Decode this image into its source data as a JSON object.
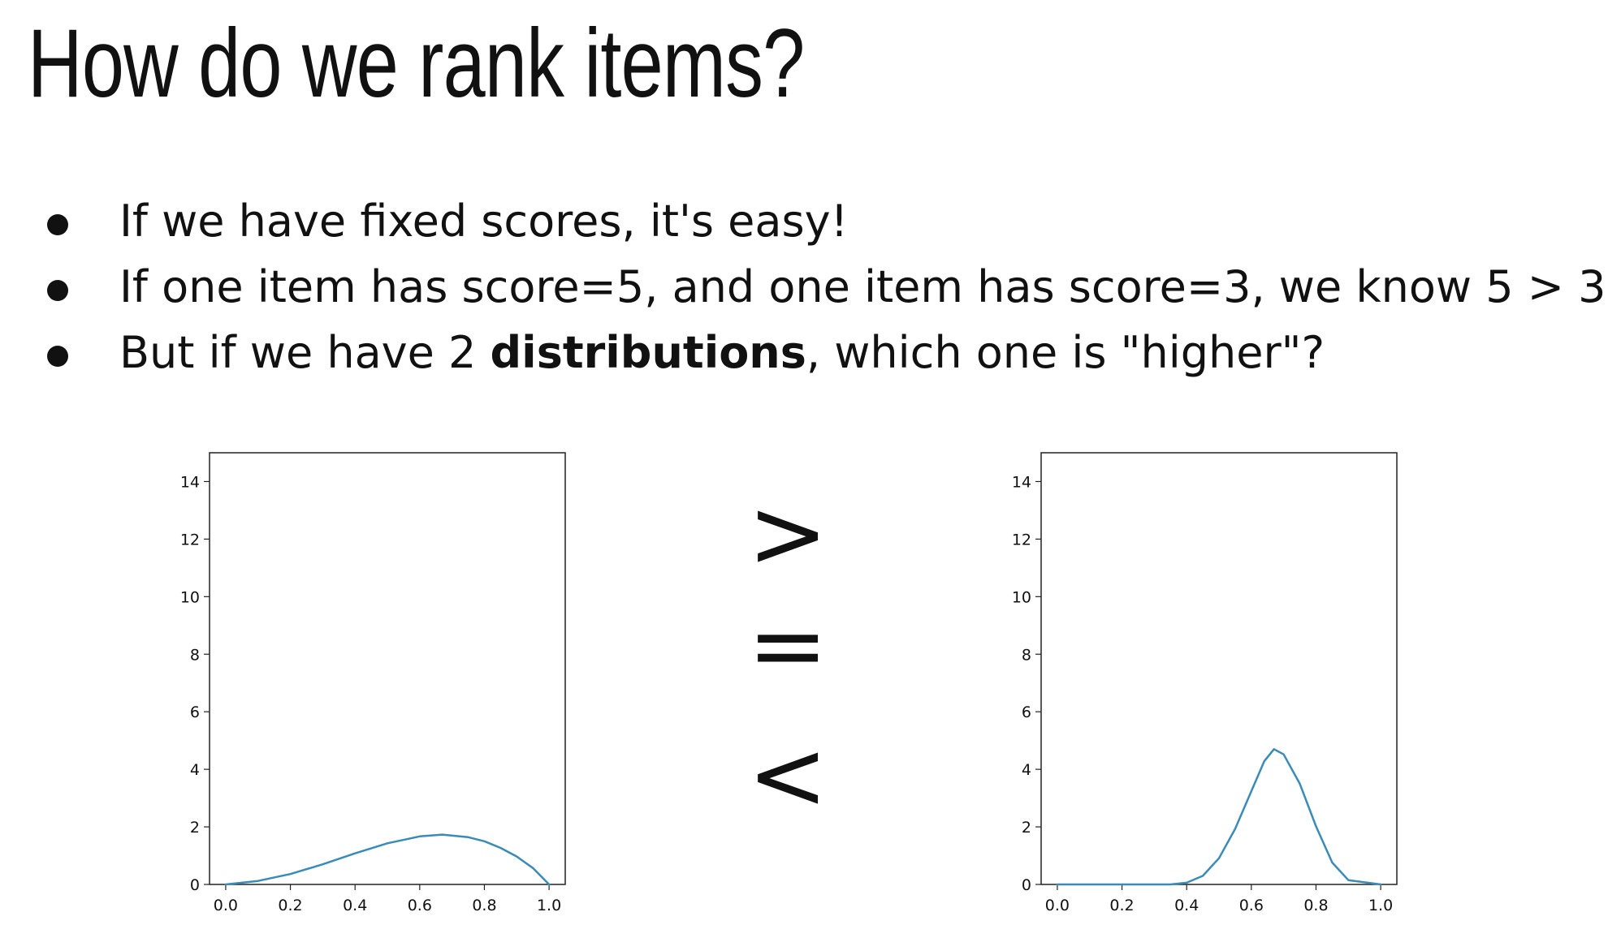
{
  "slide": {
    "title": "How do we rank items?",
    "bullets": [
      {
        "pre": "If we have fixed scores, it's easy!",
        "bold": "",
        "post": ""
      },
      {
        "pre": "If one item has score=5, and one item has score=3, we know 5 > 3",
        "bold": "",
        "post": ""
      },
      {
        "pre": "But if we have 2 ",
        "bold": "distributions",
        "post": ", which one is \"higher\"?"
      }
    ],
    "relations": [
      ">",
      "=",
      "<"
    ]
  },
  "colors": {
    "line": "#3a8bb7",
    "axis": "#222222",
    "text": "#111111"
  },
  "chart_data": [
    {
      "type": "line",
      "title": "",
      "xlabel": "",
      "ylabel": "",
      "xlim": [
        -0.05,
        1.05
      ],
      "ylim": [
        0,
        15
      ],
      "xticks": [
        "0.0",
        "0.2",
        "0.4",
        "0.6",
        "0.8",
        "1.0"
      ],
      "yticks": [
        "0",
        "2",
        "4",
        "6",
        "8",
        "10",
        "12",
        "14"
      ],
      "grid": false,
      "series": [
        {
          "x": [
            0.0,
            0.1,
            0.2,
            0.3,
            0.4,
            0.5,
            0.6,
            0.67,
            0.75,
            0.8,
            0.85,
            0.9,
            0.95,
            1.0
          ],
          "y": [
            0.0,
            0.12,
            0.36,
            0.7,
            1.08,
            1.43,
            1.67,
            1.73,
            1.64,
            1.5,
            1.27,
            0.97,
            0.57,
            0.0
          ]
        }
      ]
    },
    {
      "type": "line",
      "title": "",
      "xlabel": "",
      "ylabel": "",
      "xlim": [
        -0.05,
        1.05
      ],
      "ylim": [
        0,
        15
      ],
      "xticks": [
        "0.0",
        "0.2",
        "0.4",
        "0.6",
        "0.8",
        "1.0"
      ],
      "yticks": [
        "0",
        "2",
        "4",
        "6",
        "8",
        "10",
        "12",
        "14"
      ],
      "grid": false,
      "series": [
        {
          "x": [
            0.0,
            0.35,
            0.4,
            0.45,
            0.5,
            0.55,
            0.6,
            0.64,
            0.67,
            0.7,
            0.75,
            0.8,
            0.85,
            0.9,
            1.0
          ],
          "y": [
            0.0,
            0.0,
            0.06,
            0.3,
            0.91,
            1.93,
            3.24,
            4.28,
            4.7,
            4.52,
            3.5,
            2.02,
            0.76,
            0.15,
            0.0
          ]
        }
      ]
    }
  ]
}
